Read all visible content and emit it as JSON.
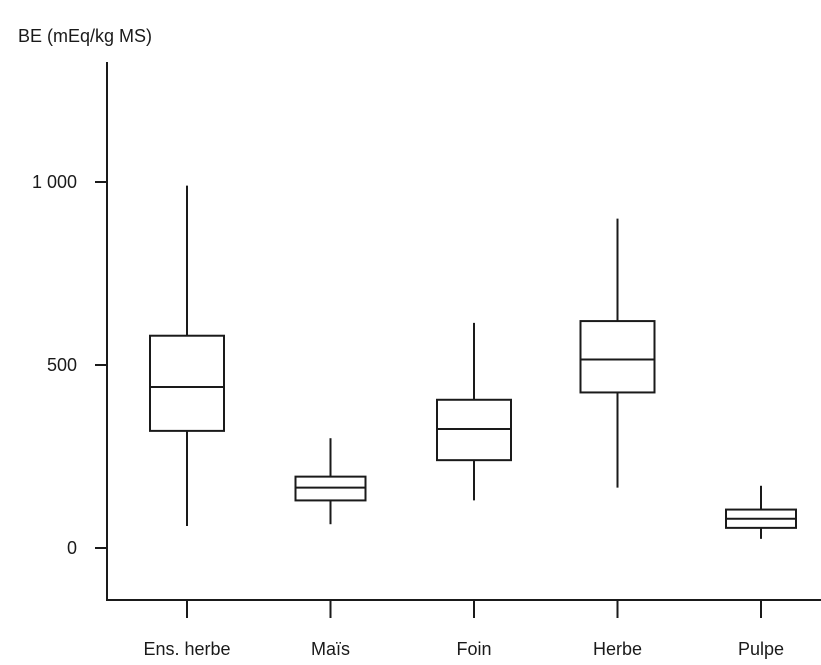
{
  "chart_data": {
    "type": "boxplot",
    "ylabel": "BE (mEq/kg MS)",
    "xlabel": "",
    "ylim": [
      -150,
      1280
    ],
    "yticks": [
      {
        "value": 0,
        "label": "0"
      },
      {
        "value": 500,
        "label": "500"
      },
      {
        "value": 1000,
        "label": "1 000"
      }
    ],
    "categories": [
      "Ens. herbe",
      "Maïs",
      "Foin",
      "Herbe",
      "Pulpe"
    ],
    "boxes": [
      {
        "category": "Ens. herbe",
        "min": 60,
        "q1": 320,
        "median": 440,
        "q3": 580,
        "max": 990
      },
      {
        "category": "Maïs",
        "min": 65,
        "q1": 130,
        "median": 165,
        "q3": 195,
        "max": 300
      },
      {
        "category": "Foin",
        "min": 130,
        "q1": 240,
        "median": 325,
        "q3": 405,
        "max": 615
      },
      {
        "category": "Herbe",
        "min": 165,
        "q1": 425,
        "median": 515,
        "q3": 620,
        "max": 900
      },
      {
        "category": "Pulpe",
        "min": 25,
        "q1": 55,
        "median": 80,
        "q3": 105,
        "max": 170
      }
    ],
    "grid": false,
    "colors": {
      "ink": "#1a1a1a",
      "background": "#ffffff"
    }
  }
}
